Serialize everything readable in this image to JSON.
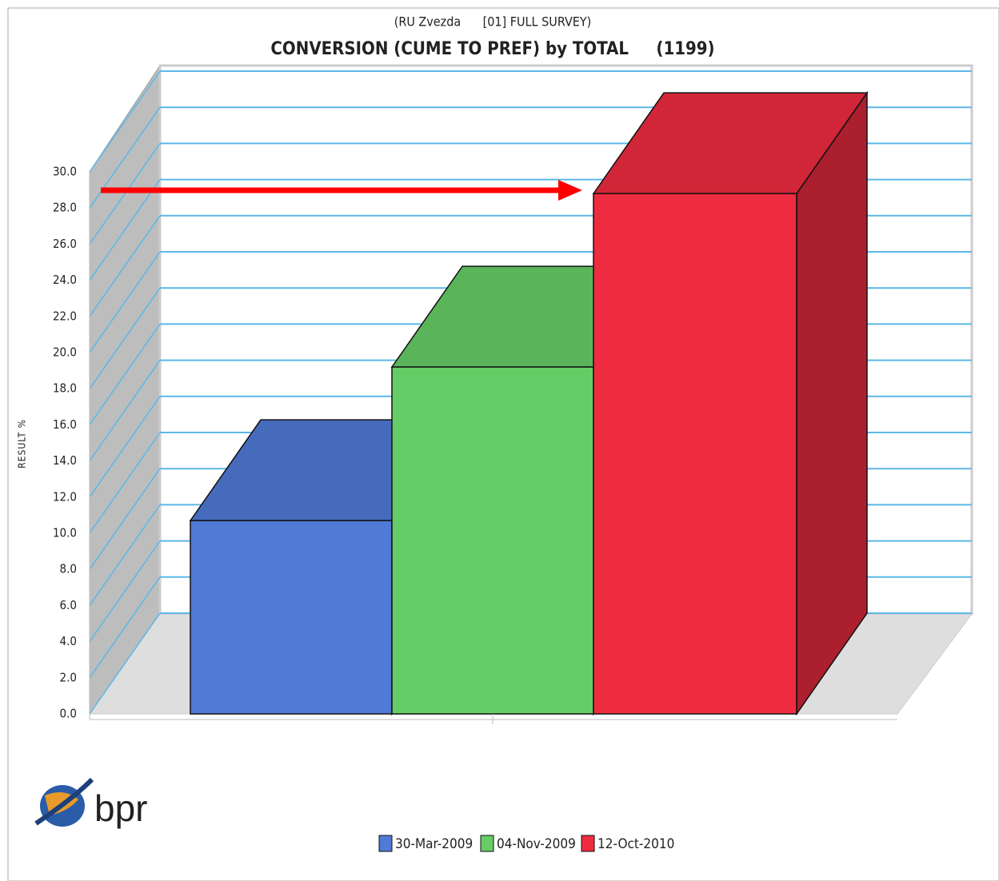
{
  "chart_data": {
    "type": "bar3d",
    "supertitle": "(RU Zvezda      [01] FULL SURVEY)",
    "title": "CONVERSION (CUME TO PREF) by TOTAL     (1199)",
    "y_label": "RESULT %",
    "series": [
      {
        "name": "30-Mar-2009",
        "color": "#507ad6",
        "values": [
          10.7
        ]
      },
      {
        "name": "04-Nov-2009",
        "color": "#66cc66",
        "values": [
          19.2
        ]
      },
      {
        "name": "12-Oct-2010",
        "color": "#ee2b40",
        "values": [
          28.8
        ]
      }
    ],
    "ylim": [
      0,
      30
    ],
    "yticks": [
      {
        "value": 0,
        "label": "0.0"
      },
      {
        "value": 2,
        "label": "2.0"
      },
      {
        "value": 4,
        "label": "4.0"
      },
      {
        "value": 6,
        "label": "6.0"
      },
      {
        "value": 8,
        "label": "8.0"
      },
      {
        "value": 10,
        "label": "10.0"
      },
      {
        "value": 12,
        "label": "12.0"
      },
      {
        "value": 14,
        "label": "14.0"
      },
      {
        "value": 16,
        "label": "16.0"
      },
      {
        "value": 18,
        "label": "18.0"
      },
      {
        "value": 20,
        "label": "20.0"
      },
      {
        "value": 22,
        "label": "22.0"
      },
      {
        "value": 24,
        "label": "24.0"
      },
      {
        "value": 26,
        "label": "26.0"
      },
      {
        "value": 28,
        "label": "28.0"
      },
      {
        "value": 30,
        "label": "30.0"
      }
    ],
    "grid": true,
    "legend": "bottom",
    "logo_text": "bpr"
  }
}
